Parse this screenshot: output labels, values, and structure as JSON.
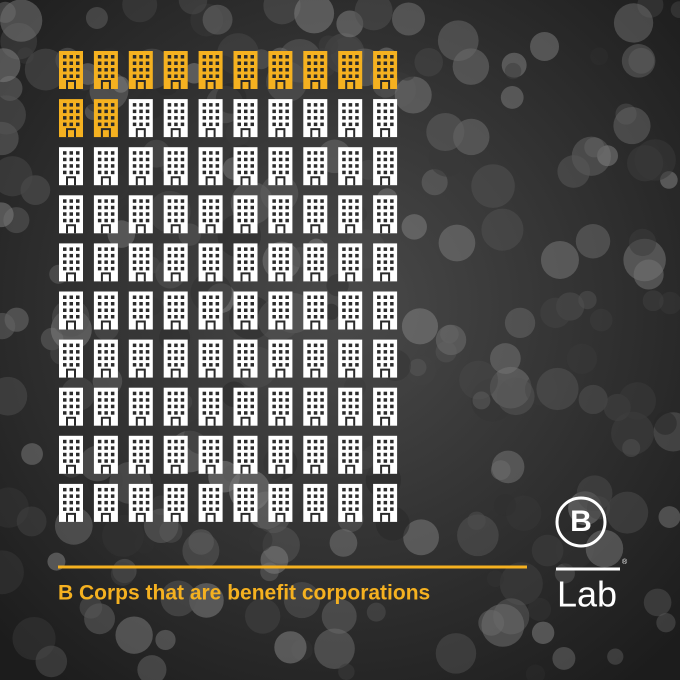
{
  "chart_data": {
    "type": "pictogram",
    "title": "B Corps that are benefit corporations",
    "value": 12,
    "total": 100,
    "color": "#f5b120",
    "base_color": "#ffffff"
  },
  "logo": {
    "letter": "B",
    "name": "Lab",
    "mark": "®"
  }
}
